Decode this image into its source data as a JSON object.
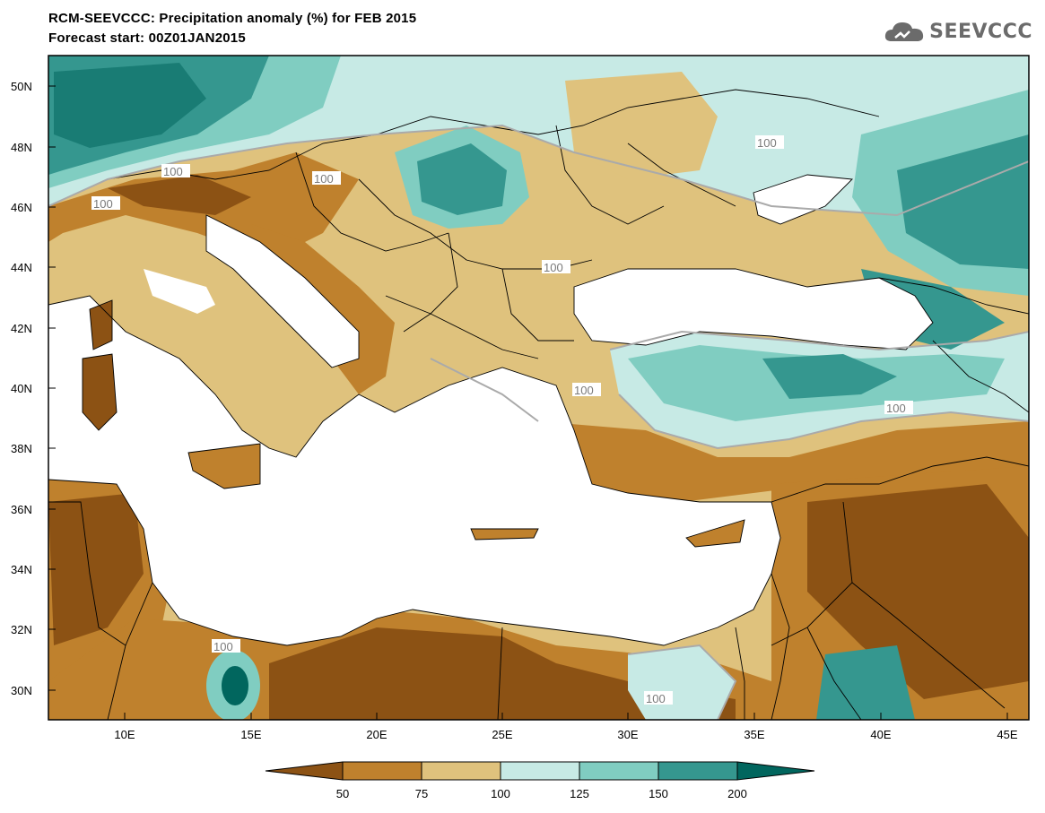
{
  "title_line1": "RCM-SEEVCCC: Precipitation anomaly (%) for FEB 2015",
  "title_line2": "Forecast start: 00Z01JAN2015",
  "logo_text": "SEEVCCC",
  "lat_labels": [
    "50N",
    "48N",
    "46N",
    "44N",
    "42N",
    "40N",
    "38N",
    "36N",
    "34N",
    "32N",
    "30N"
  ],
  "lon_labels": [
    "10E",
    "15E",
    "20E",
    "25E",
    "30E",
    "35E",
    "40E",
    "45E"
  ],
  "contour_labels": [
    "100",
    "100",
    "100",
    "100",
    "100",
    "100",
    "100",
    "100",
    "100"
  ],
  "colorbar": {
    "labels": [
      "50",
      "75",
      "100",
      "125",
      "150",
      "200"
    ],
    "colors": [
      "#8c5214",
      "#bf812d",
      "#dfc27d",
      "#c7eae5",
      "#80cdc1",
      "#35978f",
      "#01665e"
    ]
  },
  "colors": {
    "land_default": "#dfc27d",
    "sea": "#ffffff",
    "border": "#000000",
    "contour_line": "#aaaaaa"
  }
}
